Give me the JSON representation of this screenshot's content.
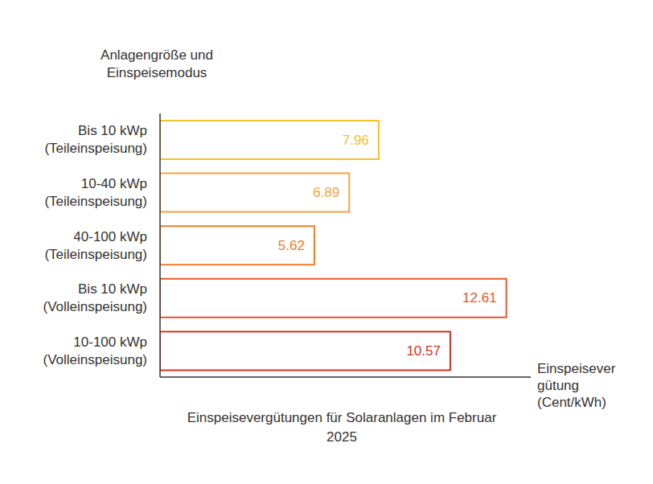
{
  "chart_data": {
    "type": "bar",
    "orientation": "horizontal",
    "title": "Einspeisevergütungen für Solaranlagen im Februar 2025",
    "y_label": "Anlagengröße und Einspeisemodus",
    "x_label": "Einspeisevergütung (Cent/kWh)",
    "categories": [
      "Bis 10 kWp (Teileinspeisung)",
      "10-40 kWp (Teileinspeisung)",
      "40-100 kWp (Teileinspeisung)",
      "Bis 10 kWp (Volleinspeisung)",
      "10-100 kWp (Volleinspeisung)"
    ],
    "values": [
      7.96,
      6.89,
      5.62,
      12.61,
      10.57
    ],
    "colors": [
      "#f2c12e",
      "#f4a43a",
      "#ee7c26",
      "#e8552a",
      "#d9301e"
    ],
    "xlim": [
      0,
      13.5
    ],
    "tick_labels": false,
    "data_labels": true,
    "grid": false
  }
}
